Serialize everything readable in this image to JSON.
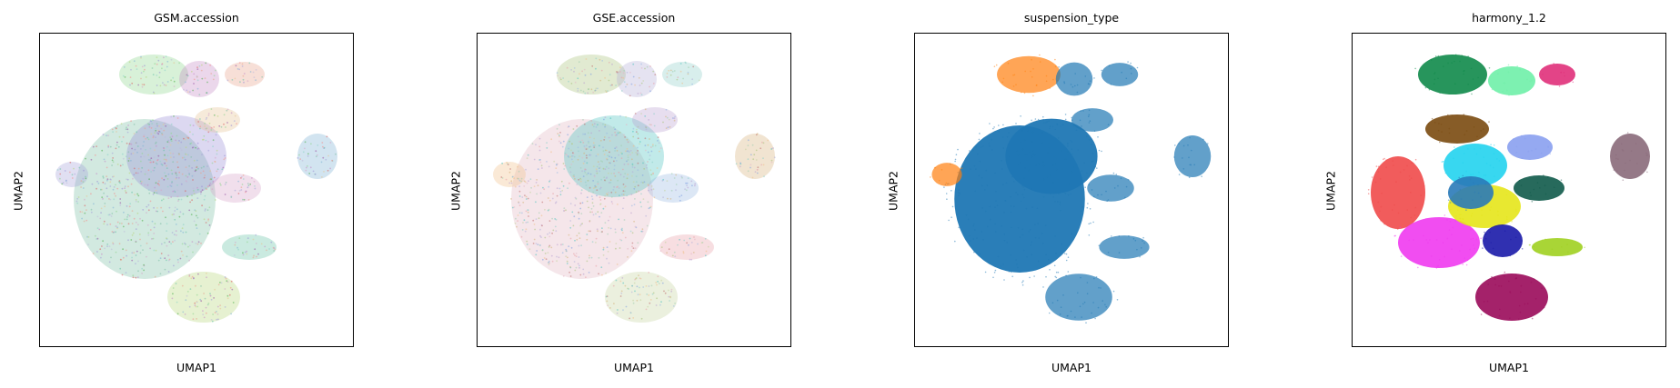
{
  "chart_data": [
    {
      "type": "scatter",
      "title": "GSM.accession",
      "xlabel": "UMAP1",
      "ylabel": "UMAP2",
      "grid": false,
      "legend": "none",
      "color_mode": "categorical-many",
      "palette": [
        "#7fbfa6",
        "#9a8fd6",
        "#8fd68f",
        "#c58bc7",
        "#e8a38c",
        "#7fb3d5",
        "#b7d67a",
        "#d6a4c9",
        "#66c2a5",
        "#e5c494",
        "#a6a3d9",
        "#f28e8e",
        "#8dd3c7",
        "#bebada",
        "#d95f5f",
        "#4daf4a",
        "#984ea3"
      ]
    },
    {
      "type": "scatter",
      "title": "GSE.accession",
      "xlabel": "UMAP1",
      "ylabel": "UMAP2",
      "grid": false,
      "legend": "none",
      "color_mode": "categorical-many",
      "palette": [
        "#e3b7c4",
        "#4ec3c0",
        "#a8c27a",
        "#b4b0d8",
        "#8ecfc9",
        "#d6b27a",
        "#c5d3a0",
        "#9ab9e3",
        "#e7a0a8",
        "#bba0d0",
        "#f0c08a",
        "#7fa0e0",
        "#c07070",
        "#a0d0b0"
      ]
    },
    {
      "type": "scatter",
      "title": "suspension_type",
      "xlabel": "UMAP1",
      "ylabel": "UMAP2",
      "grid": false,
      "legend": "none",
      "color_mode": "categorical",
      "palette": [
        "#1f77b4",
        "#ff7f0e"
      ]
    },
    {
      "type": "scatter",
      "title": "harmony_1.2",
      "xlabel": "UMAP1",
      "ylabel": "UMAP2",
      "grid": false,
      "legend": "none",
      "color_mode": "categorical",
      "palette": [
        "#0f8a4a",
        "#6ff0a8",
        "#7a4a10",
        "#22d3ee",
        "#f04a4a",
        "#f03af0",
        "#e6e61a",
        "#1a1aa8",
        "#0f5a4a",
        "#9a0a5a",
        "#8aa0f0",
        "#a0d020",
        "#8a6a7a",
        "#2a7ab8",
        "#e0307a"
      ]
    }
  ]
}
